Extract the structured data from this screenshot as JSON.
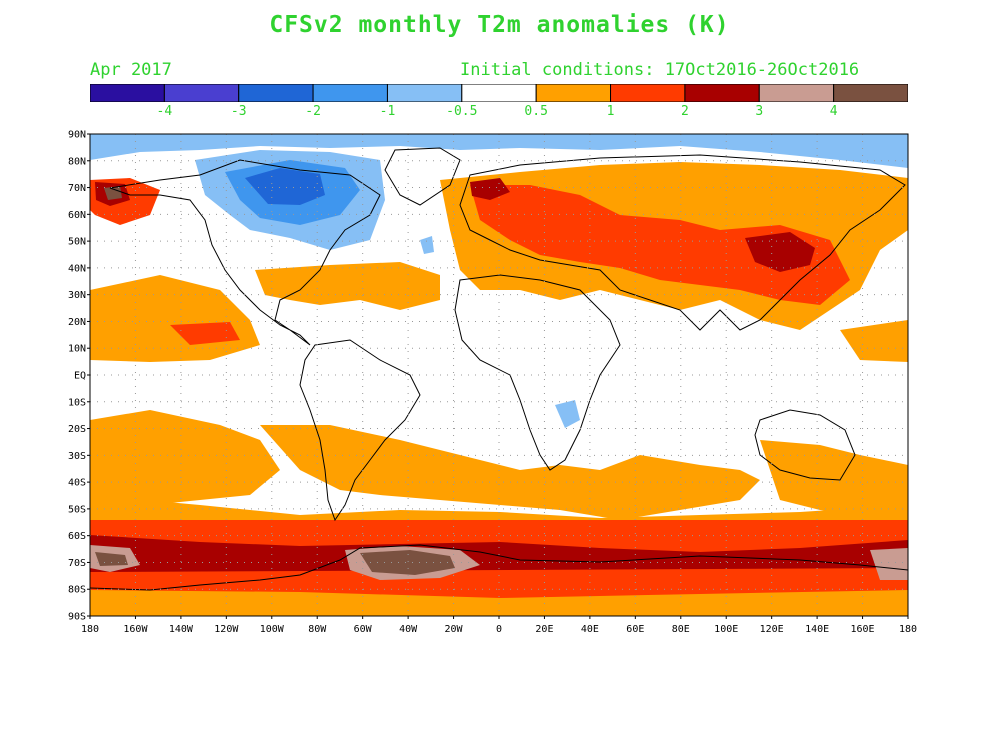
{
  "title": "CFSv2 monthly T2m anomalies (K)",
  "valid_month": "Apr 2017",
  "initial_conditions": "Initial conditions: 17Oct2016-26Oct2016",
  "colorbar": {
    "bins": [
      {
        "color": "#2a0fa0"
      },
      {
        "color": "#4a3fd0"
      },
      {
        "color": "#1f66d6"
      },
      {
        "color": "#3f96ee"
      },
      {
        "color": "#86bff5"
      },
      {
        "color": "#ffffff"
      },
      {
        "color": "#ffa000"
      },
      {
        "color": "#ff3b00"
      },
      {
        "color": "#a80000"
      },
      {
        "color": "#c99c92"
      },
      {
        "color": "#7a5140"
      }
    ],
    "labels": [
      "-4",
      "-3",
      "-2",
      "-1",
      "-0.5",
      "0.5",
      "1",
      "2",
      "3",
      "4"
    ]
  },
  "lat_labels": [
    "90N",
    "80N",
    "70N",
    "60N",
    "50N",
    "40N",
    "30N",
    "20N",
    "10N",
    "EQ",
    "10S",
    "20S",
    "30S",
    "40S",
    "50S",
    "60S",
    "70S",
    "80S",
    "90S"
  ],
  "lon_labels": [
    "180",
    "160W",
    "140W",
    "120W",
    "100W",
    "80W",
    "60W",
    "40W",
    "20W",
    "0",
    "20E",
    "40E",
    "60E",
    "80E",
    "100E",
    "120E",
    "140E",
    "160E",
    "180"
  ],
  "colors": {
    "text_green": "#2fd22f",
    "anom_pos1": "#ffa000",
    "anom_pos2": "#ff3b00",
    "anom_pos3": "#a80000",
    "anom_pos4": "#c99c92",
    "anom_pos5": "#7a5140",
    "anom_neg1": "#86bff5",
    "anom_neg2": "#3f96ee",
    "anom_neg3": "#1f66d6"
  }
}
